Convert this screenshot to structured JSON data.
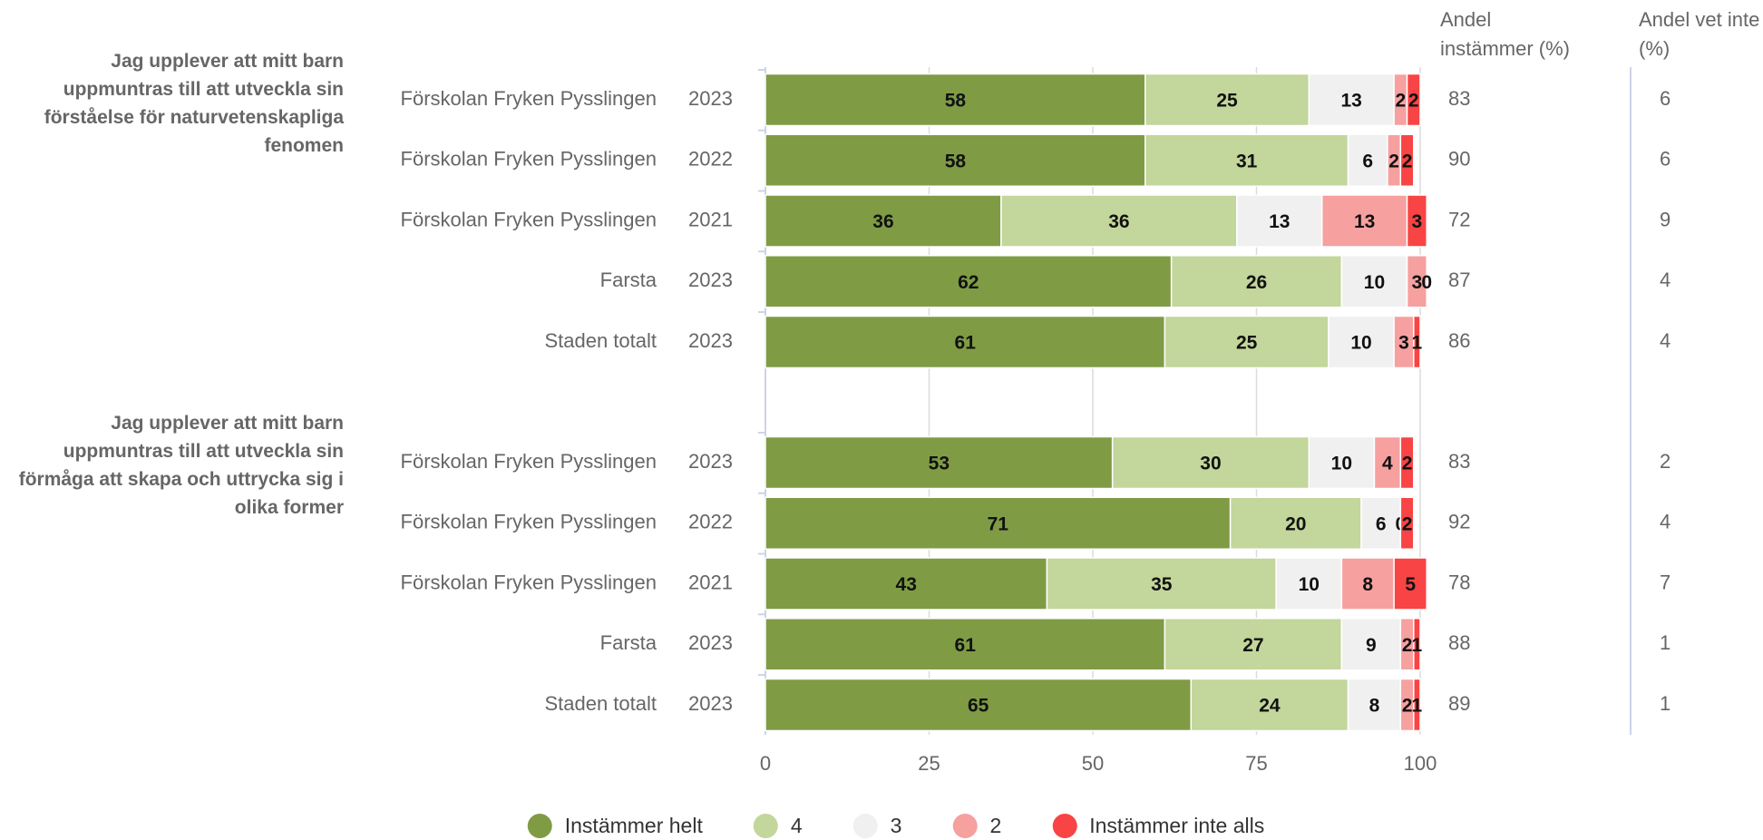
{
  "chart_data": {
    "type": "bar",
    "orientation": "horizontal",
    "stacked": true,
    "xlim": [
      0,
      100
    ],
    "xticks": [
      0,
      25,
      50,
      75,
      100
    ],
    "grid": true,
    "legend": "bottom",
    "column_headers": [
      "Andel instämmer (%)",
      "Andel vet inte (%)"
    ],
    "series": [
      {
        "name": "Instämmer helt",
        "color": "#7f9c45"
      },
      {
        "name": "4",
        "color": "#c3d69b"
      },
      {
        "name": "3",
        "color": "#f0f0f0"
      },
      {
        "name": "2",
        "color": "#f6a0a0"
      },
      {
        "name": "Instämmer inte alls",
        "color": "#f84444"
      }
    ],
    "groups": [
      {
        "title": "Jag upplever att mitt barn uppmuntras till att utveckla sin förståelse för naturvetenskapliga fenomen",
        "categories": [
          "Förskolan Fryken Pysslingen",
          "Förskolan Fryken Pysslingen",
          "Förskolan Fryken Pysslingen",
          "Farsta",
          "Staden totalt"
        ],
        "years": [
          "2023",
          "2022",
          "2021",
          "2023",
          "2023"
        ],
        "series": [
          {
            "values": [
              58,
              58,
              36,
              62,
              61
            ]
          },
          {
            "values": [
              25,
              31,
              36,
              26,
              25
            ]
          },
          {
            "values": [
              13,
              6,
              13,
              10,
              10
            ]
          },
          {
            "values": [
              2,
              2,
              13,
              3,
              3
            ]
          },
          {
            "values": [
              2,
              2,
              3,
              0,
              1
            ]
          }
        ],
        "share_agree": [
          83,
          90,
          72,
          87,
          86
        ],
        "share_dont_know": [
          6,
          6,
          9,
          4,
          4
        ]
      },
      {
        "title": "Jag upplever att mitt barn uppmuntras till att utveckla sin förmåga att skapa och uttrycka sig i olika former",
        "categories": [
          "Förskolan Fryken Pysslingen",
          "Förskolan Fryken Pysslingen",
          "Förskolan Fryken Pysslingen",
          "Farsta",
          "Staden totalt"
        ],
        "years": [
          "2023",
          "2022",
          "2021",
          "2023",
          "2023"
        ],
        "series": [
          {
            "values": [
              53,
              71,
              43,
              61,
              65
            ]
          },
          {
            "values": [
              30,
              20,
              35,
              27,
              24
            ]
          },
          {
            "values": [
              10,
              6,
              10,
              9,
              8
            ]
          },
          {
            "values": [
              4,
              0,
              8,
              2,
              2
            ]
          },
          {
            "values": [
              2,
              2,
              5,
              1,
              1
            ]
          }
        ],
        "share_agree": [
          83,
          92,
          78,
          88,
          89
        ],
        "share_dont_know": [
          2,
          4,
          7,
          1,
          1
        ]
      }
    ]
  }
}
